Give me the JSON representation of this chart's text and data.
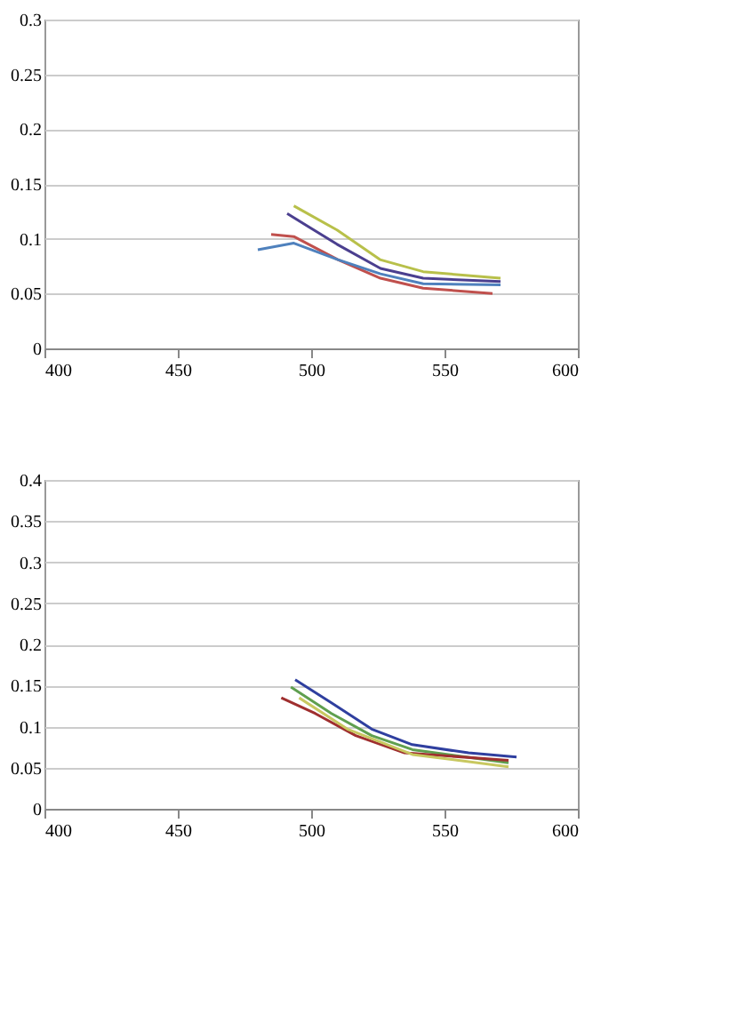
{
  "chart_data": [
    {
      "type": "line",
      "xlim": [
        400,
        600
      ],
      "xticks": [
        400,
        450,
        500,
        550,
        600
      ],
      "ylim": [
        0,
        0.3
      ],
      "yticks": [
        0,
        0.05,
        0.1,
        0.15,
        0.2,
        0.25,
        0.3
      ],
      "grid": "y",
      "legend": false,
      "series": [
        {
          "color": "#b8c04a",
          "x": [
            493.5,
            509.7,
            525.8,
            542,
            571
          ],
          "values": [
            0.13,
            0.108,
            0.081,
            0.07,
            0.064
          ]
        },
        {
          "color": "#4b3f8f",
          "x": [
            491,
            509.7,
            526,
            542,
            571
          ],
          "values": [
            0.123,
            0.095,
            0.073,
            0.064,
            0.061
          ]
        },
        {
          "color": "#c0504d",
          "x": [
            485,
            493.5,
            510,
            526,
            542,
            568
          ],
          "values": [
            0.104,
            0.102,
            0.081,
            0.064,
            0.055,
            0.05
          ]
        },
        {
          "color": "#4f81bd",
          "x": [
            480,
            493.5,
            510,
            526,
            542,
            571
          ],
          "values": [
            0.09,
            0.096,
            0.081,
            0.068,
            0.059,
            0.058
          ]
        }
      ]
    },
    {
      "type": "line",
      "xlim": [
        400,
        600
      ],
      "xticks": [
        400,
        450,
        500,
        550,
        600
      ],
      "ylim": [
        0,
        0.4
      ],
      "yticks": [
        0,
        0.05,
        0.1,
        0.15,
        0.2,
        0.25,
        0.3,
        0.35,
        0.4
      ],
      "grid": "y",
      "legend": false,
      "series": [
        {
          "color": "#2f3f9f",
          "x": [
            494,
            507.6,
            522.7,
            537.9,
            559,
            577
          ],
          "values": [
            0.157,
            0.129,
            0.097,
            0.078,
            0.068,
            0.063
          ]
        },
        {
          "color": "#5f9f4f",
          "x": [
            492.4,
            507.6,
            522.7,
            538,
            574
          ],
          "values": [
            0.148,
            0.116,
            0.089,
            0.072,
            0.056
          ]
        },
        {
          "color": "#9f2f2f",
          "x": [
            488.8,
            501.5,
            516.7,
            535,
            574
          ],
          "values": [
            0.135,
            0.116,
            0.089,
            0.068,
            0.059
          ]
        },
        {
          "color": "#c8c860",
          "x": [
            495.5,
            513.6,
            538,
            574
          ],
          "values": [
            0.135,
            0.097,
            0.066,
            0.051
          ]
        }
      ]
    }
  ]
}
